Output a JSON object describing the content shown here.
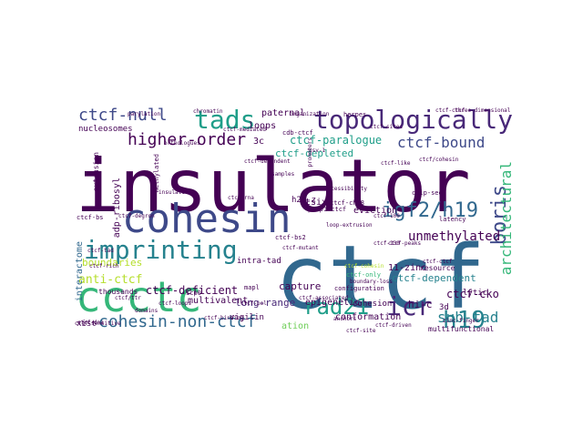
{
  "palette": {
    "purple": "#440154",
    "indigo": "#482878",
    "blue": "#3e4989",
    "steel": "#31688e",
    "teal": "#26828e",
    "aqua": "#1f9e89",
    "green": "#35b779",
    "lime": "#6ece58",
    "yellow": "#b5de2b"
  },
  "words": [
    {
      "text": "insulator",
      "color": "purple",
      "name": "word-insulator"
    },
    {
      "text": "ctcf",
      "color": "steel",
      "name": "word-ctcf"
    },
    {
      "text": "cohesin",
      "color": "blue",
      "name": "word-cohesin"
    },
    {
      "text": "ccctc",
      "color": "green",
      "name": "word-ccctc"
    },
    {
      "text": "topologically",
      "color": "indigo",
      "name": "word-topologically"
    },
    {
      "text": "imprinting",
      "color": "teal",
      "name": "word-imprinting"
    },
    {
      "text": "tads",
      "color": "aqua",
      "name": "word-tads"
    },
    {
      "text": "igf2/h19",
      "color": "steel",
      "name": "word-igf2-h19"
    },
    {
      "text": "boris",
      "color": "blue",
      "name": "word-boris"
    },
    {
      "text": "rad21",
      "color": "aqua",
      "name": "word-rad21"
    },
    {
      "text": "icr",
      "color": "indigo",
      "name": "word-icr"
    },
    {
      "text": "h19",
      "color": "teal",
      "name": "word-h19"
    },
    {
      "text": "ctcf-null",
      "color": "blue",
      "name": "word-ctcf-null"
    },
    {
      "text": "higher-order",
      "color": "purple",
      "name": "word-higher-order"
    },
    {
      "text": "ctcf-bound",
      "color": "blue",
      "name": "word-ctcf-bound"
    },
    {
      "text": "architectural",
      "color": "green",
      "name": "word-architectural"
    },
    {
      "text": "cohesin-non-ctcf",
      "color": "steel",
      "name": "word-cohesin-non-ctcf"
    },
    {
      "text": "sub-tad",
      "color": "teal",
      "name": "word-sub-tad"
    },
    {
      "text": "unmethylated",
      "color": "purple",
      "name": "word-unmethylated"
    },
    {
      "text": "anti-ctcf",
      "color": "yellow",
      "name": "word-anti-ctcf"
    },
    {
      "text": "ctcf-deficient",
      "color": "purple",
      "name": "word-ctcf-deficient"
    },
    {
      "text": "ctcf-paralogue",
      "color": "aqua",
      "name": "word-ctcf-paralogue"
    },
    {
      "text": "ctcf-cko",
      "color": "purple",
      "name": "word-ctcf-cko"
    },
    {
      "text": "boundaries",
      "color": "yellow",
      "name": "word-boundaries"
    },
    {
      "text": "ctcf-depleted",
      "color": "aqua",
      "name": "word-ctcf-depleted"
    },
    {
      "text": "ctcf-dependent",
      "color": "teal",
      "name": "word-ctcf-dependent"
    },
    {
      "text": "interactome",
      "color": "steel",
      "name": "word-interactome"
    },
    {
      "text": "adp-ribosyl",
      "color": "purple",
      "name": "word-adp-ribosyl"
    },
    {
      "text": "capture",
      "color": "purple",
      "name": "word-capture"
    },
    {
      "text": "long-range",
      "color": "indigo",
      "name": "word-long-range"
    },
    {
      "text": "epigenetic",
      "color": "purple",
      "name": "word-epigenetic"
    },
    {
      "text": "hi-c",
      "color": "purple",
      "name": "word-hi-c"
    },
    {
      "text": "loops",
      "color": "purple",
      "name": "word-loops"
    },
    {
      "text": "3c",
      "color": "purple",
      "name": "word-3c"
    },
    {
      "text": "tsix",
      "color": "purple",
      "name": "word-tsix"
    },
    {
      "text": "paternal",
      "color": "purple",
      "name": "word-paternal"
    },
    {
      "text": "multivalent",
      "color": "purple",
      "name": "word-multivalent"
    },
    {
      "text": "conformation",
      "color": "purple",
      "name": "word-conformation"
    },
    {
      "text": "nucleosomes",
      "color": "purple",
      "name": "word-nucleosomes"
    },
    {
      "text": "thousands",
      "color": "purple",
      "name": "word-thousands"
    },
    {
      "text": "eviction",
      "color": "purple",
      "name": "word-eviction"
    },
    {
      "text": "h2a.z",
      "color": "purple",
      "name": "word-h2a-z"
    },
    {
      "text": "intra-tad",
      "color": "purple",
      "name": "word-intra-tad"
    },
    {
      "text": "cohesion",
      "color": "purple",
      "name": "word-cohesion"
    },
    {
      "text": "lytic",
      "color": "purple",
      "name": "word-lytic"
    },
    {
      "text": "11-zinc",
      "color": "purple",
      "name": "word-11-zinc"
    },
    {
      "text": "3d",
      "color": "purple",
      "name": "word-3d"
    },
    {
      "text": "xist",
      "color": "purple",
      "name": "word-xist"
    },
    {
      "text": "ation",
      "color": "lime",
      "name": "word-ation"
    },
    {
      "text": "vigilin",
      "color": "purple",
      "name": "word-vigilin"
    },
    {
      "text": "resource",
      "color": "purple",
      "name": "word-resource"
    },
    {
      "text": "extrusion",
      "color": "purple",
      "name": "word-extrusion"
    },
    {
      "text": "methylated",
      "color": "purple",
      "name": "word-methylated"
    },
    {
      "text": "cdb-ctcf",
      "color": "purple",
      "name": "word-cdb-ctcf"
    },
    {
      "text": "ctcf-only",
      "color": "green",
      "name": "word-ctcf-only"
    },
    {
      "text": "configuration",
      "color": "purple",
      "name": "word-configuration"
    },
    {
      "text": "latency",
      "color": "purple",
      "name": "word-latency"
    },
    {
      "text": "chip-seq",
      "color": "purple",
      "name": "word-chip-seq"
    },
    {
      "text": "ctcf-bs2",
      "color": "purple",
      "name": "word-ctcf-bs2"
    },
    {
      "text": "ctcf-chd8",
      "color": "purple",
      "name": "word-ctcf-chd8"
    },
    {
      "text": "icp0",
      "color": "purple",
      "name": "word-icp0"
    },
    {
      "text": "mapl",
      "color": "purple",
      "name": "word-mapl"
    },
    {
      "text": "multifunctional",
      "color": "purple",
      "name": "word-multifunctional"
    },
    {
      "text": "ctcf-driven",
      "color": "purple",
      "name": "word-ctcf-driven"
    },
    {
      "text": "ctcf-mediated",
      "color": "purple",
      "name": "word-ctcf-mediated"
    },
    {
      "text": "chromatin",
      "color": "purple",
      "name": "word-chromatin"
    },
    {
      "text": "hsv-1",
      "color": "purple",
      "name": "word-hsv-1"
    },
    {
      "text": "three-dimensional",
      "color": "purple",
      "name": "word-three-dimensional"
    },
    {
      "text": "herpes",
      "color": "purple",
      "name": "word-herpes"
    },
    {
      "text": "ctcf-bs",
      "color": "purple",
      "name": "word-ctcf-bs"
    },
    {
      "text": "ctcf-dna",
      "color": "purple",
      "name": "word-ctcf-dna"
    },
    {
      "text": "parylation",
      "color": "purple",
      "name": "word-parylation"
    },
    {
      "text": "promoters",
      "color": "purple",
      "name": "word-promoters"
    },
    {
      "text": "anchors",
      "color": "purple",
      "name": "word-anchors"
    },
    {
      "text": "ctcf-ctcf",
      "color": "purple",
      "name": "word-ctcf-ctcf"
    },
    {
      "text": "ctcf-tad",
      "color": "purple",
      "name": "word-ctcf-tad"
    },
    {
      "text": "ctcf-loops",
      "color": "purple",
      "name": "word-ctcf-loops"
    },
    {
      "text": "ctcf-100",
      "color": "purple",
      "name": "word-ctcf-100"
    },
    {
      "text": "ctcf-130",
      "color": "purple",
      "name": "word-ctcf-130"
    },
    {
      "text": "ctcf/ttr",
      "color": "purple",
      "name": "word-ctcf-ttr"
    },
    {
      "text": "ctcf-cohesin",
      "color": "yellow",
      "name": "word-ctcf-cohesin"
    },
    {
      "text": "ctcf-pol",
      "color": "purple",
      "name": "word-ctcf-pol"
    },
    {
      "text": "ctcf-ctcf",
      "color": "purple",
      "name": "word-ctcf-ctcf-2"
    },
    {
      "text": "ctcf-like",
      "color": "purple",
      "name": "word-ctcf-like"
    },
    {
      "text": "ctcf-sites",
      "color": "purple",
      "name": "word-ctcf-sites"
    },
    {
      "text": "ctcf-sensitive",
      "color": "purple",
      "name": "word-ctcf-sensitive"
    },
    {
      "text": "organization",
      "color": "purple",
      "name": "word-organization"
    },
    {
      "text": "samples",
      "color": "purple",
      "name": "word-samples"
    },
    {
      "text": "accessibility",
      "color": "purple",
      "name": "word-accessibility"
    },
    {
      "text": "ctcf-mutant",
      "color": "purple",
      "name": "word-ctcf-mutant"
    },
    {
      "text": "ctcf-associated",
      "color": "purple",
      "name": "word-ctcf-associated"
    },
    {
      "text": "parp1-ctcf",
      "color": "purple",
      "name": "word-parp1-ctcf"
    },
    {
      "text": "orthologues",
      "color": "purple",
      "name": "word-orthologues"
    },
    {
      "text": "domains",
      "color": "purple",
      "name": "word-domains"
    },
    {
      "text": "ctcf-binding",
      "color": "purple",
      "name": "word-ctcf-binding"
    },
    {
      "text": "zinc-finger",
      "color": "purple",
      "name": "word-zinc-finger"
    },
    {
      "text": "ctcf-site",
      "color": "purple",
      "name": "word-ctcf-site"
    },
    {
      "text": "boundary-loss",
      "color": "purple",
      "name": "word-boundary-loss"
    },
    {
      "text": "ctcf-rich",
      "color": "purple",
      "name": "word-ctcf-rich"
    },
    {
      "text": "ctcf-dependent",
      "color": "purple",
      "name": "word-ctcf-dependent-2"
    },
    {
      "text": "loop-extrusion",
      "color": "purple",
      "name": "word-loop-extrusion"
    },
    {
      "text": "ctcf-degron",
      "color": "purple",
      "name": "word-ctcf-degron"
    },
    {
      "text": "insulated",
      "color": "purple",
      "name": "word-insulated"
    },
    {
      "text": "ctcf-rna",
      "color": "purple",
      "name": "word-ctcf-rna"
    },
    {
      "text": "ctcf-peaks",
      "color": "purple",
      "name": "word-ctcf-peaks"
    },
    {
      "text": "ctcf/cohesin",
      "color": "purple",
      "name": "word-ctcf-cohesin-2"
    }
  ]
}
